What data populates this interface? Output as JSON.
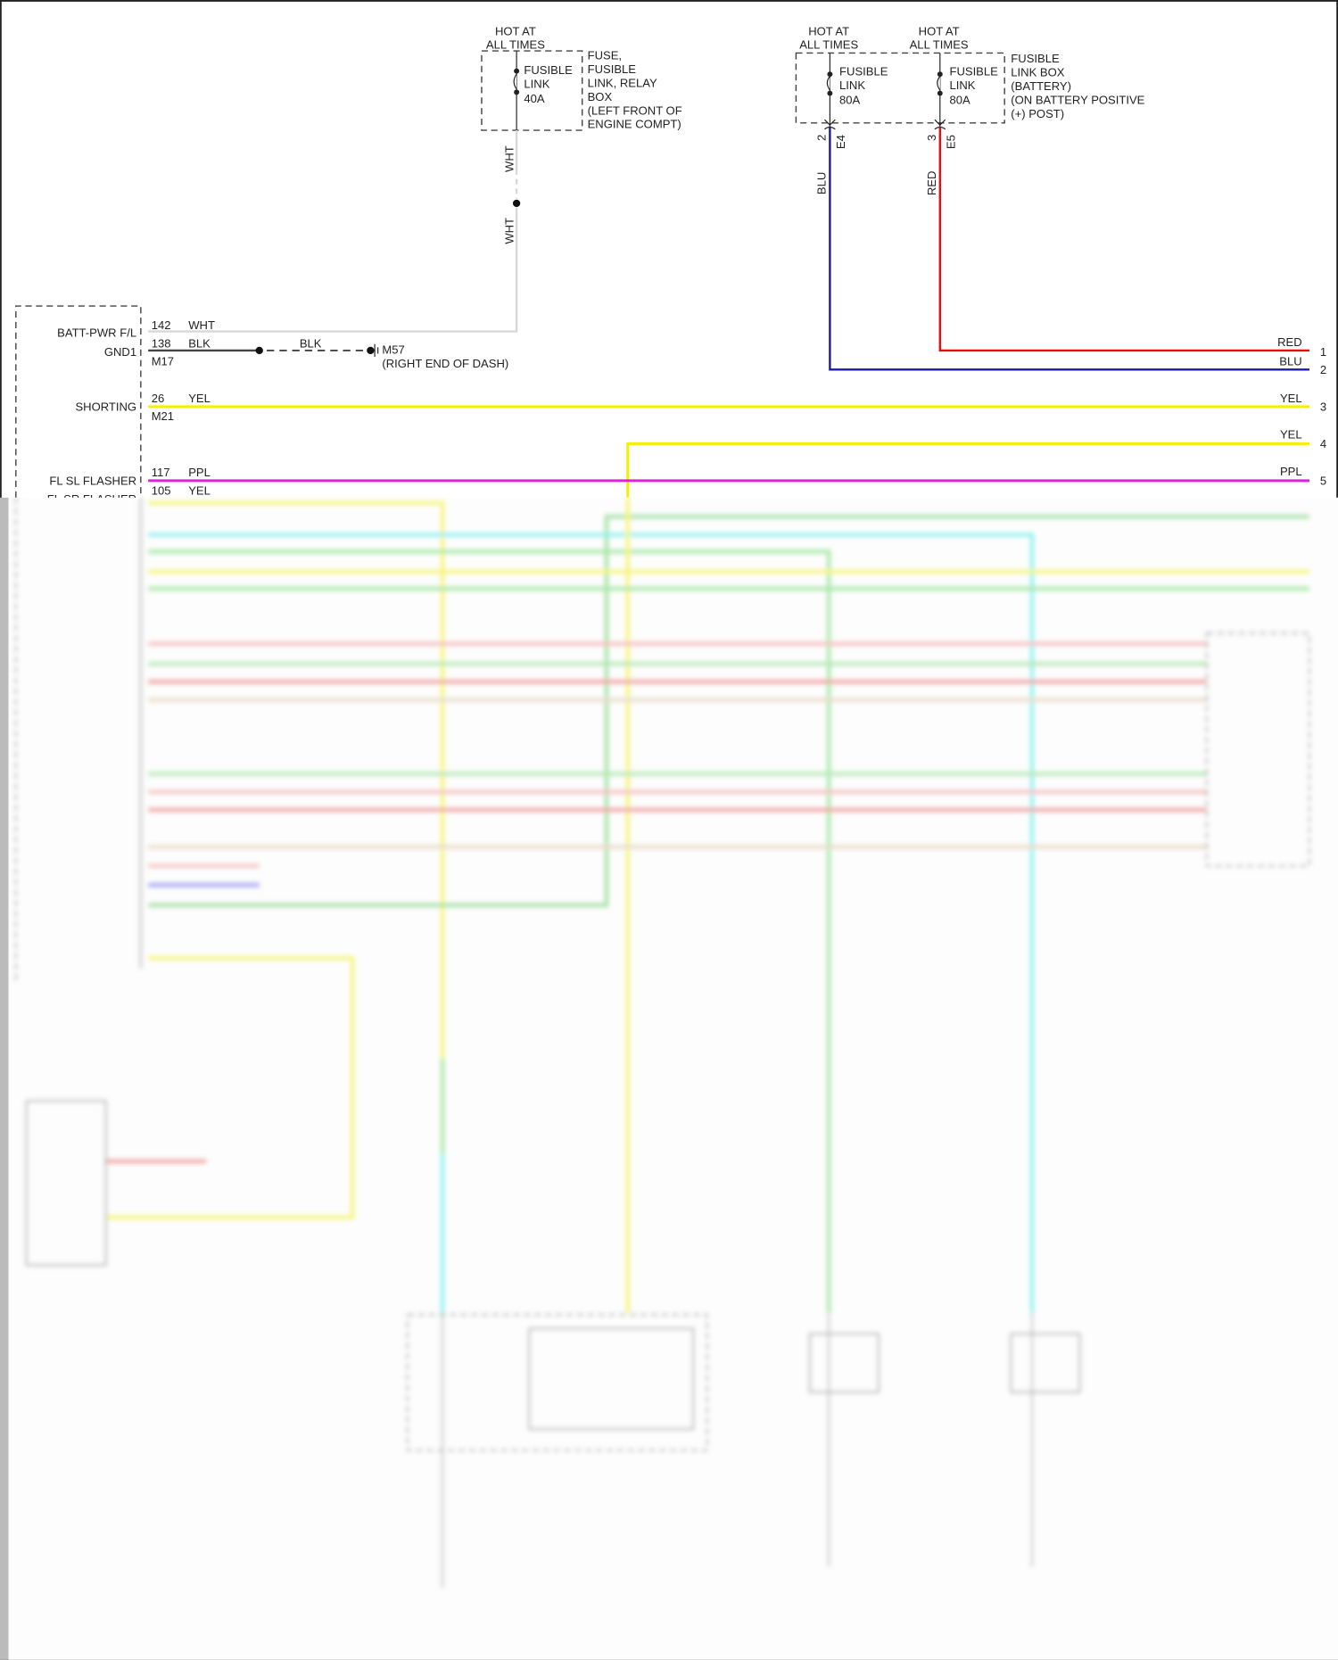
{
  "fuse_relay_box": {
    "hot": [
      "HOT AT",
      "ALL TIMES"
    ],
    "fuse": [
      "FUSIBLE",
      "LINK",
      "40A"
    ],
    "label": [
      "FUSE,",
      "FUSIBLE",
      "LINK, RELAY",
      "BOX",
      "(LEFT FRONT OF",
      "ENGINE COMPT)"
    ],
    "wire_color": "WHT"
  },
  "battery_box": {
    "hot_left": [
      "HOT AT",
      "ALL TIMES"
    ],
    "hot_right": [
      "HOT AT",
      "ALL TIMES"
    ],
    "fuse_left": [
      "FUSIBLE",
      "LINK",
      "80A"
    ],
    "fuse_right": [
      "FUSIBLE",
      "LINK",
      "80A"
    ],
    "label": [
      "FUSIBLE",
      "LINK BOX",
      "(BATTERY)",
      "(ON BATTERY POSITIVE",
      "(+) POST)"
    ],
    "conn_left": {
      "pin": "2",
      "id": "E4",
      "color": "BLU"
    },
    "conn_right": {
      "pin": "3",
      "id": "E5",
      "color": "RED"
    }
  },
  "module": {
    "pins": [
      {
        "label": "BATT-PWR F/L",
        "pin": "142",
        "color": "WHT"
      },
      {
        "label": "GND1",
        "pin": "138",
        "color": "BLK",
        "conn": "M17"
      },
      {
        "label": "SHORTING",
        "pin": "26",
        "color": "YEL",
        "conn": "M21"
      },
      {
        "label": "FL SL FLASHER",
        "pin": "117",
        "color": "PPL"
      },
      {
        "label": "FL SR FLASHER",
        "pin": "105",
        "color": "YEL"
      }
    ]
  },
  "ground": {
    "wire": "BLK",
    "id": "M57",
    "location": "(RIGHT END OF DASH)"
  },
  "right_terminals": [
    {
      "num": "1",
      "color": "RED"
    },
    {
      "num": "2",
      "color": "BLU"
    },
    {
      "num": "3",
      "color": "YEL"
    },
    {
      "num": "4",
      "color": "YEL"
    },
    {
      "num": "5",
      "color": "PPL"
    }
  ],
  "colors": {
    "RED": "#e01010",
    "BLU": "#1a1aa8",
    "YEL": "#f5f000",
    "PPL": "#e020e0",
    "WHT": "#d8d8d8",
    "BLK": "#444444",
    "GRN": "#8de08d",
    "CYN": "#7ff0f0"
  }
}
